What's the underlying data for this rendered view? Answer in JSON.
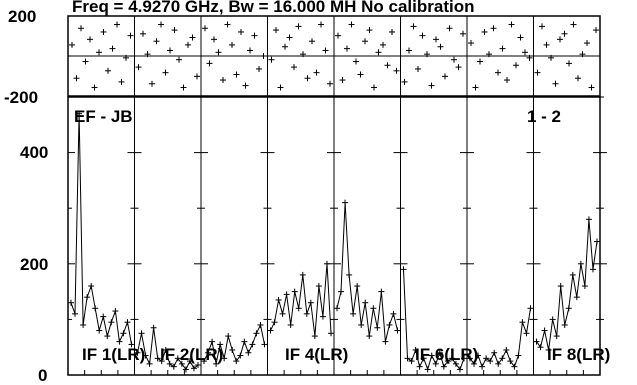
{
  "title": "Freq = 4.9270 GHz, Bw = 16.000 MH  No calibration",
  "baseline_label": "EF - JB",
  "pol_label": "1 - 2",
  "phase_axis": {
    "ticks": [
      "200",
      "-200"
    ]
  },
  "amp_axis": {
    "ticks": [
      "400",
      "200",
      "0"
    ]
  },
  "if_labels": [
    "IF 1(LR)",
    "IF 2(LR)",
    "IF 4(LR)",
    "IF 6(LR)",
    "IF 8(LR)"
  ],
  "colors": {
    "line": "#000000",
    "background": "#ffffff"
  },
  "chart_data": [
    {
      "type": "scatter",
      "name": "phase",
      "ylim": [
        -200,
        200
      ],
      "grid": true,
      "panels": 8,
      "points_per_panel": 14,
      "values": [
        [
          60,
          -120,
          150,
          -30,
          90,
          -170,
          20,
          130,
          -80,
          40,
          170,
          -140,
          -10,
          110
        ],
        [
          -60,
          120,
          10,
          -150,
          80,
          170,
          -90,
          30,
          140,
          -20,
          -170,
          60,
          100,
          -110
        ],
        [
          150,
          -40,
          90,
          20,
          -130,
          170,
          60,
          -100,
          130,
          -160,
          30,
          110,
          -70,
          0
        ],
        [
          -20,
          140,
          -170,
          50,
          100,
          -60,
          160,
          10,
          -120,
          80,
          -90,
          170,
          30,
          -150
        ],
        [
          110,
          -130,
          40,
          170,
          -30,
          -100,
          80,
          140,
          -170,
          20,
          60,
          -50,
          130,
          -80
        ],
        [
          -140,
          30,
          160,
          -70,
          110,
          10,
          -160,
          90,
          50,
          -110,
          150,
          -20,
          -60,
          120
        ],
        [
          70,
          -170,
          -30,
          130,
          10,
          150,
          -90,
          40,
          -130,
          170,
          -50,
          100,
          20,
          -10
        ],
        [
          -90,
          160,
          60,
          -10,
          -150,
          90,
          120,
          -40,
          170,
          -120,
          10,
          70,
          -170,
          140
        ]
      ]
    },
    {
      "type": "line",
      "name": "amplitude",
      "ylim": [
        0,
        500
      ],
      "grid": true,
      "panels": 8,
      "values": [
        [
          130,
          110,
          470,
          90,
          140,
          160,
          120,
          80,
          105,
          70,
          95,
          115,
          60,
          75,
          95,
          55
        ],
        [
          40,
          75,
          35,
          20,
          85,
          30,
          25,
          45,
          20,
          15,
          30,
          20,
          10,
          25,
          12,
          18
        ],
        [
          25,
          40,
          60,
          20,
          55,
          30,
          70,
          45,
          25,
          35,
          60,
          40,
          55,
          75,
          90,
          55
        ],
        [
          80,
          95,
          135,
          110,
          145,
          90,
          150,
          120,
          180,
          110,
          130,
          70,
          160,
          105,
          200,
          75
        ],
        [
          120,
          150,
          310,
          180,
          110,
          160,
          90,
          130,
          70,
          120,
          85,
          150,
          60,
          90,
          110,
          80
        ],
        [
          190,
          30,
          25,
          45,
          15,
          30,
          10,
          35,
          20,
          40,
          15,
          25,
          30,
          20,
          10,
          30
        ],
        [
          30,
          20,
          35,
          15,
          30,
          25,
          40,
          20,
          30,
          45,
          25,
          15,
          35,
          95,
          75,
          120
        ],
        [
          60,
          50,
          80,
          45,
          100,
          70,
          160,
          90,
          120,
          180,
          140,
          200,
          160,
          280,
          190,
          240
        ]
      ]
    }
  ]
}
